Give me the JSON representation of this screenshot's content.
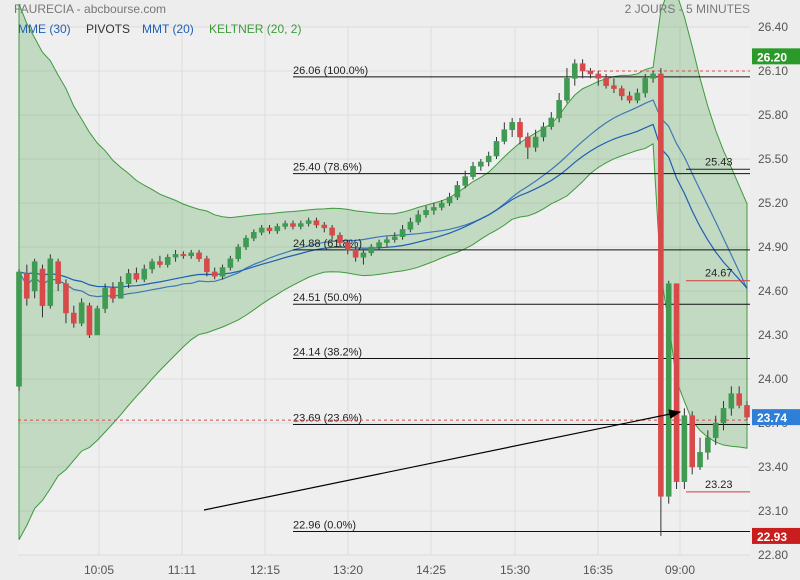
{
  "header": {
    "title": "FAURECIA - abcbourse.com",
    "period": "2 JOURS - 5 MINUTES",
    "indicators": [
      {
        "label": "MME (30)",
        "color": "#1f5fb3"
      },
      {
        "label": "PIVOTS",
        "color": "#333333"
      },
      {
        "label": "MMT (20)",
        "color": "#1f5fb3"
      },
      {
        "label": "KELTNER (20, 2)",
        "color": "#3d9a3d"
      }
    ]
  },
  "chart_data": {
    "type": "candlestick",
    "ylim": [
      22.8,
      26.4
    ],
    "yticks": [
      "26.40",
      "26.10",
      "25.80",
      "25.50",
      "25.20",
      "24.90",
      "24.60",
      "24.30",
      "24.00",
      "23.70",
      "23.40",
      "23.10",
      "22.80"
    ],
    "xticks": [
      "10:05",
      "11:11",
      "12:15",
      "13:20",
      "14:25",
      "15:30",
      "16:35",
      "09:00"
    ],
    "candles": [
      [
        23.95,
        24.73,
        24.75,
        23.92
      ],
      [
        24.72,
        24.55,
        24.78,
        24.5
      ],
      [
        24.6,
        24.8,
        24.82,
        24.55
      ],
      [
        24.75,
        24.5,
        24.78,
        24.42
      ],
      [
        24.5,
        24.82,
        24.85,
        24.48
      ],
      [
        24.8,
        24.65,
        24.82,
        24.6
      ],
      [
        24.65,
        24.45,
        24.68,
        24.38
      ],
      [
        24.45,
        24.38,
        24.5,
        24.35
      ],
      [
        24.38,
        24.52,
        24.55,
        24.36
      ],
      [
        24.5,
        24.3,
        24.52,
        24.28
      ],
      [
        24.3,
        24.48,
        24.5,
        24.3
      ],
      [
        24.48,
        24.62,
        24.65,
        24.45
      ],
      [
        24.62,
        24.55,
        24.66,
        24.52
      ],
      [
        24.55,
        24.66,
        24.7,
        24.55
      ],
      [
        24.65,
        24.72,
        24.75,
        24.62
      ],
      [
        24.72,
        24.68,
        24.76,
        24.66
      ],
      [
        24.68,
        24.75,
        24.78,
        24.66
      ],
      [
        24.75,
        24.8,
        24.82,
        24.72
      ],
      [
        24.8,
        24.78,
        24.84,
        24.76
      ],
      [
        24.78,
        24.83,
        24.85,
        24.76
      ],
      [
        24.83,
        24.85,
        24.88,
        24.8
      ],
      [
        24.85,
        24.84,
        24.87,
        24.82
      ],
      [
        24.84,
        24.86,
        24.88,
        24.82
      ],
      [
        24.86,
        24.82,
        24.88,
        24.8
      ],
      [
        24.82,
        24.73,
        24.84,
        24.7
      ],
      [
        24.73,
        24.7,
        24.76,
        24.68
      ],
      [
        24.7,
        24.76,
        24.78,
        24.68
      ],
      [
        24.76,
        24.82,
        24.84,
        24.74
      ],
      [
        24.82,
        24.9,
        24.92,
        24.8
      ],
      [
        24.9,
        24.96,
        24.98,
        24.88
      ],
      [
        24.96,
        25.0,
        25.02,
        24.94
      ],
      [
        25.0,
        25.03,
        25.05,
        24.98
      ],
      [
        25.03,
        25.01,
        25.05,
        24.99
      ],
      [
        25.01,
        25.04,
        25.06,
        24.99
      ],
      [
        25.04,
        25.06,
        25.08,
        25.02
      ],
      [
        25.06,
        25.04,
        25.08,
        25.02
      ],
      [
        25.04,
        25.06,
        25.08,
        25.02
      ],
      [
        25.06,
        25.08,
        25.1,
        25.04
      ],
      [
        25.08,
        25.05,
        25.1,
        25.03
      ],
      [
        25.05,
        25.03,
        25.07,
        25.0
      ],
      [
        25.03,
        24.98,
        25.05,
        24.95
      ],
      [
        24.98,
        24.93,
        25.0,
        24.9
      ],
      [
        24.93,
        24.88,
        24.95,
        24.85
      ],
      [
        24.88,
        24.83,
        24.9,
        24.8
      ],
      [
        24.83,
        24.86,
        24.88,
        24.78
      ],
      [
        24.86,
        24.9,
        24.92,
        24.84
      ],
      [
        24.9,
        24.93,
        24.95,
        24.88
      ],
      [
        24.93,
        24.95,
        24.97,
        24.9
      ],
      [
        24.95,
        24.97,
        25.0,
        24.93
      ],
      [
        24.97,
        25.02,
        25.05,
        24.95
      ],
      [
        25.02,
        25.07,
        25.1,
        25.0
      ],
      [
        25.07,
        25.12,
        25.15,
        25.05
      ],
      [
        25.12,
        25.15,
        25.18,
        25.1
      ],
      [
        25.15,
        25.17,
        25.2,
        25.12
      ],
      [
        25.17,
        25.2,
        25.22,
        25.15
      ],
      [
        25.2,
        25.24,
        25.27,
        25.18
      ],
      [
        25.24,
        25.32,
        25.35,
        25.22
      ],
      [
        25.32,
        25.38,
        25.42,
        25.3
      ],
      [
        25.38,
        25.45,
        25.48,
        25.36
      ],
      [
        25.45,
        25.48,
        25.5,
        25.42
      ],
      [
        25.48,
        25.52,
        25.55,
        25.45
      ],
      [
        25.52,
        25.62,
        25.65,
        25.5
      ],
      [
        25.62,
        25.7,
        25.75,
        25.6
      ],
      [
        25.7,
        25.75,
        25.78,
        25.65
      ],
      [
        25.75,
        25.65,
        25.78,
        25.6
      ],
      [
        25.65,
        25.58,
        25.68,
        25.5
      ],
      [
        25.58,
        25.65,
        25.7,
        25.55
      ],
      [
        25.65,
        25.72,
        25.75,
        25.62
      ],
      [
        25.72,
        25.78,
        25.82,
        25.7
      ],
      [
        25.78,
        25.9,
        25.95,
        25.75
      ],
      [
        25.9,
        26.05,
        26.12,
        25.88
      ],
      [
        26.05,
        26.15,
        26.18,
        26.0
      ],
      [
        26.15,
        26.1,
        26.18,
        26.05
      ],
      [
        26.1,
        26.08,
        26.12,
        26.05
      ],
      [
        26.08,
        26.05,
        26.1,
        26.0
      ],
      [
        26.05,
        26.0,
        26.08,
        25.98
      ],
      [
        26.0,
        25.98,
        26.05,
        25.95
      ],
      [
        25.98,
        25.93,
        26.0,
        25.9
      ],
      [
        25.93,
        25.9,
        25.96,
        25.88
      ],
      [
        25.9,
        25.95,
        25.98,
        25.88
      ],
      [
        25.95,
        26.05,
        26.08,
        25.92
      ],
      [
        26.05,
        26.08,
        26.1,
        26.02
      ],
      [
        26.08,
        23.2,
        26.12,
        22.93
      ],
      [
        23.2,
        24.65,
        24.67,
        23.15
      ],
      [
        24.65,
        23.3,
        24.65,
        23.25
      ],
      [
        23.3,
        23.75,
        23.8,
        23.25
      ],
      [
        23.75,
        23.4,
        23.78,
        23.35
      ],
      [
        23.4,
        23.5,
        23.6,
        23.38
      ],
      [
        23.5,
        23.6,
        23.65,
        23.45
      ],
      [
        23.6,
        23.7,
        23.75,
        23.55
      ],
      [
        23.7,
        23.8,
        23.85,
        23.65
      ],
      [
        23.8,
        23.9,
        23.95,
        23.75
      ],
      [
        23.9,
        23.82,
        23.95,
        23.8
      ],
      [
        23.82,
        23.74,
        23.85,
        23.72
      ]
    ],
    "current_price": "23.74",
    "day_high": "26.20",
    "day_low": "22.93",
    "prev_ref": 23.72,
    "prev_high": 26.1,
    "fibonacci": [
      {
        "label": "26.06 (100.0%)",
        "value": 26.06
      },
      {
        "label": "25.40 (78.6%)",
        "value": 25.4
      },
      {
        "label": "24.88 (61.8%)",
        "value": 24.88
      },
      {
        "label": "24.51 (50.0%)",
        "value": 24.51
      },
      {
        "label": "24.14 (38.2%)",
        "value": 24.14
      },
      {
        "label": "23.69 (23.6%)",
        "value": 23.69
      },
      {
        "label": "22.96 (0.0%)",
        "value": 22.96
      }
    ],
    "pivots": [
      {
        "label": "25.43",
        "value": 25.43,
        "color": "#222222"
      },
      {
        "label": "24.67",
        "value": 24.67,
        "color": "#d83a3a"
      },
      {
        "label": "23.23",
        "value": 23.23,
        "color": "#d83a3a"
      }
    ],
    "colors": {
      "up": "#3f9a52",
      "down": "#d84a4a",
      "keltner": "#3d9a3d",
      "mme": "#1f5fb3",
      "high_badge": "#2b9a2b",
      "low_badge": "#c81e1e",
      "price_badge": "#2f7fd8"
    }
  }
}
